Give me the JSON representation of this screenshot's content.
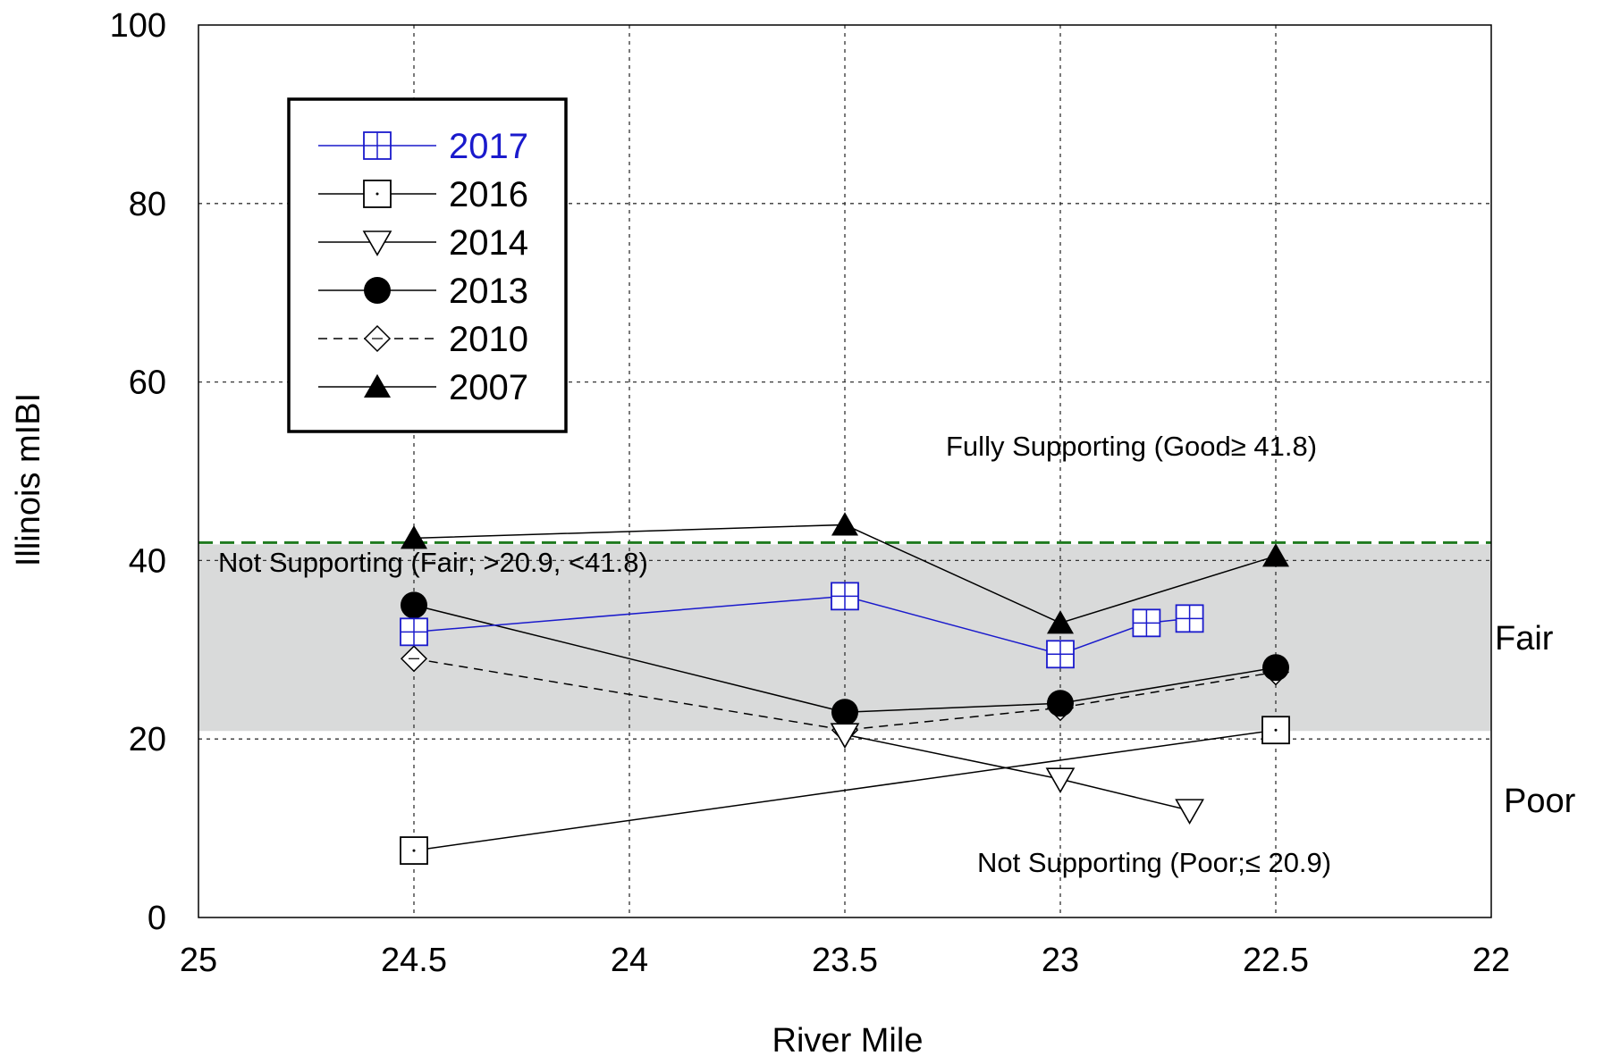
{
  "chart_data": {
    "type": "line",
    "title": "",
    "xlabel": "River Mile",
    "ylabel": "Illinois mIBI",
    "xlim": [
      25,
      22
    ],
    "ylim": [
      0,
      100
    ],
    "x_reversed": true,
    "x_ticks": [
      "25",
      "24.5",
      "24",
      "23.5",
      "23",
      "22.5",
      "22"
    ],
    "y_ticks": [
      "0",
      "20",
      "40",
      "60",
      "80",
      "100"
    ],
    "grid": true,
    "legend_position": "top-left",
    "threshold": {
      "value": 41.8,
      "style": "dashed",
      "color": "#1f7a1f"
    },
    "fair_band": {
      "from": 20.9,
      "to": 41.8,
      "color": "#d9dada"
    },
    "annotations": [
      "Fully Supporting (Good≥ 41.8)",
      "Not Supporting (Fair; >20.9, <41.8)",
      "Not Supporting (Poor;≤ 20.9)"
    ],
    "zone_labels": [
      "Fair",
      "Poor"
    ],
    "series": [
      {
        "name": "2017",
        "color": "#1a1acc",
        "marker": "square-cross",
        "line": "solid",
        "points": [
          [
            24.5,
            32
          ],
          [
            23.5,
            36
          ],
          [
            23,
            29.5
          ],
          [
            22.8,
            33
          ],
          [
            22.7,
            33.5
          ]
        ]
      },
      {
        "name": "2016",
        "color": "#000000",
        "marker": "square-dot",
        "line": "solid",
        "points": [
          [
            24.5,
            7.5
          ],
          [
            22.5,
            21
          ]
        ]
      },
      {
        "name": "2014",
        "color": "#000000",
        "marker": "triangle-down-open",
        "line": "solid",
        "points": [
          [
            23.5,
            20.5
          ],
          [
            23,
            15.5
          ],
          [
            22.7,
            12
          ]
        ]
      },
      {
        "name": "2013",
        "color": "#000000",
        "marker": "circle-filled",
        "line": "solid",
        "points": [
          [
            24.5,
            35
          ],
          [
            23.5,
            23
          ],
          [
            23,
            24
          ],
          [
            22.5,
            28
          ]
        ]
      },
      {
        "name": "2010",
        "color": "#000000",
        "marker": "diamond-open",
        "line": "dashed",
        "points": [
          [
            24.5,
            29
          ],
          [
            23.5,
            21
          ],
          [
            23,
            23.5
          ],
          [
            22.5,
            27.5
          ]
        ]
      },
      {
        "name": "2007",
        "color": "#000000",
        "marker": "triangle-up-filled",
        "line": "solid",
        "points": [
          [
            24.5,
            42.5
          ],
          [
            23.5,
            44
          ],
          [
            23,
            33
          ],
          [
            22.5,
            40.5
          ]
        ]
      }
    ]
  }
}
